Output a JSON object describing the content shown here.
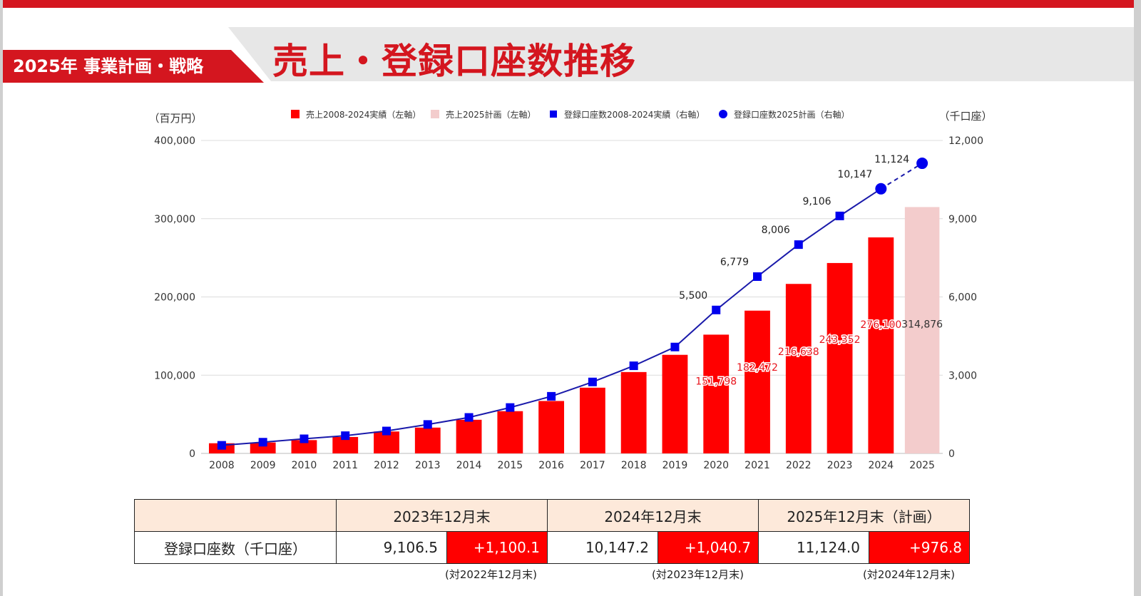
{
  "header": {
    "badge": "2025年 事業計画・戦略",
    "title": "売上・登録口座数推移"
  },
  "colors": {
    "accent": "#d4161f",
    "bar_actual": "#ff0000",
    "bar_plan": "#f3cccc",
    "line": "#1a1aaa",
    "marker": "#0000ee"
  },
  "chart_data": {
    "type": "bar",
    "categories": [
      "2008",
      "2009",
      "2010",
      "2011",
      "2012",
      "2013",
      "2014",
      "2015",
      "2016",
      "2017",
      "2018",
      "2019",
      "2020",
      "2021",
      "2022",
      "2023",
      "2024",
      "2025"
    ],
    "left_axis": {
      "label": "（百万円）",
      "range": [
        0,
        400000
      ],
      "ticks": [
        "0",
        "100,000",
        "200,000",
        "300,000",
        "400,000"
      ]
    },
    "right_axis": {
      "label": "（千口座）",
      "range": [
        0,
        12000
      ],
      "ticks": [
        "0",
        "3,000",
        "6,000",
        "9,000",
        "12,000"
      ]
    },
    "legend": {
      "placement": "top",
      "items": [
        "売上2008-2024実績（左軸）",
        "売上2025計画（左軸）",
        "登録口座数2008-2024実績（右軸）",
        "登録口座数2025計画（右軸）"
      ]
    },
    "series": [
      {
        "name": "売上2008-2024実績（左軸）",
        "axis": "left",
        "values": [
          13000,
          14000,
          17000,
          21000,
          28000,
          33000,
          43000,
          54000,
          67000,
          84000,
          104000,
          126000,
          151798,
          182472,
          216638,
          243352,
          276100,
          null
        ],
        "labels": [
          "",
          "",
          "",
          "",
          "",
          "",
          "",
          "",
          "",
          "",
          "",
          "",
          "151,798",
          "182,472",
          "216,638",
          "243,352",
          "276,100",
          ""
        ]
      },
      {
        "name": "売上2025計画（左軸）",
        "axis": "left",
        "values": [
          null,
          null,
          null,
          null,
          null,
          null,
          null,
          null,
          null,
          null,
          null,
          null,
          null,
          null,
          null,
          null,
          null,
          314876
        ],
        "labels": [
          "",
          "",
          "",
          "",
          "",
          "",
          "",
          "",
          "",
          "",
          "",
          "",
          "",
          "",
          "",
          "",
          "",
          "314,876"
        ]
      },
      {
        "name": "登録口座数2008-2024実績（右軸）",
        "axis": "right",
        "values": [
          310,
          430,
          560,
          680,
          860,
          1110,
          1380,
          1760,
          2190,
          2740,
          3360,
          4080,
          5500,
          6779,
          8006,
          9106,
          10147,
          null
        ],
        "labels": [
          "",
          "",
          "",
          "",
          "",
          "",
          "",
          "",
          "",
          "",
          "",
          "",
          "5,500",
          "6,779",
          "8,006",
          "9,106",
          "10,147",
          ""
        ]
      },
      {
        "name": "登録口座数2025計画（右軸）",
        "axis": "right",
        "values": [
          null,
          null,
          null,
          null,
          null,
          null,
          null,
          null,
          null,
          null,
          null,
          null,
          null,
          null,
          null,
          null,
          10147,
          11124
        ],
        "labels": [
          "",
          "",
          "",
          "",
          "",
          "",
          "",
          "",
          "",
          "",
          "",
          "",
          "",
          "",
          "",
          "",
          "",
          "11,124"
        ]
      }
    ],
    "grid": true
  },
  "table": {
    "headers": [
      "",
      "2023年12月末",
      "2024年12月末",
      "2025年12月末（計画）"
    ],
    "row_label": "登録口座数（千口座）",
    "cells": [
      {
        "value": "9,106.5",
        "increase": "+1,100.1",
        "note": "(対2022年12月末)"
      },
      {
        "value": "10,147.2",
        "increase": "+1,040.7",
        "note": "(対2023年12月末)"
      },
      {
        "value": "11,124.0",
        "increase": "+976.8",
        "note": "(対2024年12月末)"
      }
    ]
  }
}
